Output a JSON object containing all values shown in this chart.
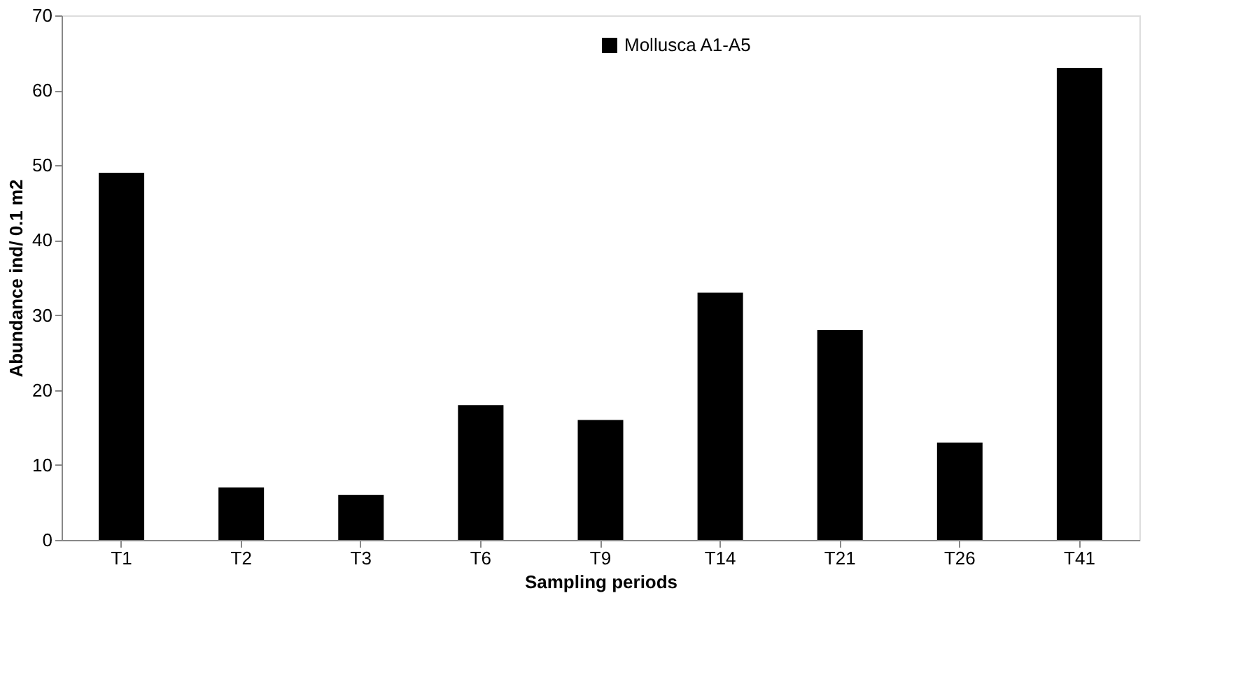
{
  "chart_data": {
    "type": "bar",
    "xlabel": "Sampling  periods",
    "ylabel": "Abundance  ind/ 0.1 m2",
    "categories": [
      "T1",
      "T2",
      "T3",
      "T6",
      "T9",
      "T14",
      "T21",
      "T26",
      "T41"
    ],
    "series": [
      {
        "name": "Mollusca A1-A5",
        "color": "#000000",
        "values": [
          49,
          7,
          6,
          18,
          16,
          33,
          28,
          13,
          63
        ]
      }
    ],
    "ylim": [
      0,
      70
    ],
    "yticks": [
      0,
      10,
      20,
      30,
      40,
      50,
      60,
      70
    ],
    "grid": false,
    "legend": "top"
  }
}
